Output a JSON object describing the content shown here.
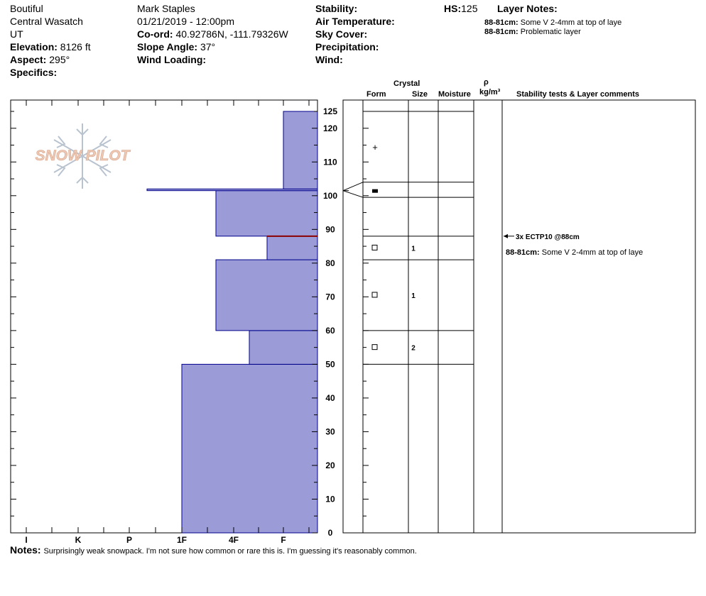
{
  "header": {
    "location": "Boutiful",
    "range": "Central Wasatch",
    "state": "UT",
    "elevation_label": "Elevation:",
    "elevation_value": "8126 ft",
    "aspect_label": "Aspect:",
    "aspect_value": "295°",
    "specifics_label": "Specifics:",
    "observer": "Mark Staples",
    "datetime": "01/21/2019 - 12:00pm",
    "coord_label": "Co-ord:",
    "coord_value": "40.92786N, -111.79326W",
    "slope_label": "Slope Angle:",
    "slope_value": "37°",
    "wind_loading_label": "Wind Loading:",
    "stability_label": "Stability:",
    "air_temp_label": "Air Temperature:",
    "sky_cover_label": "Sky Cover:",
    "precip_label": "Precipitation:",
    "wind_label": "Wind:",
    "hs_label": "HS:",
    "hs_value": "125",
    "layer_notes_label": "Layer Notes:",
    "layer_notes": [
      {
        "range": "88-81cm:",
        "text": "Some V 2-4mm at top of laye"
      },
      {
        "range": "88-81cm:",
        "text": "Problematic layer"
      }
    ]
  },
  "logo": {
    "text": "SNOW PILOT"
  },
  "columns": {
    "crystal": "Crystal",
    "form": "Form",
    "size": "Size",
    "moisture": "Moisture",
    "rho": "ρ",
    "density_unit": "kg/m³",
    "stability": "Stability tests & Layer comments"
  },
  "stability_test": {
    "text": "3x ECTP10 @88cm",
    "depth": 88
  },
  "layer_comment": {
    "range": "88-81cm:",
    "text": "Some V 2-4mm at top of laye"
  },
  "notes": {
    "label": "Notes:",
    "text": "Surprisingly weak snowpack. I'm not sure how common or rare this is. I'm guessing it's reasonably common."
  },
  "chart_data": {
    "type": "bar",
    "description_of_axes": "hardness profile vs snow height",
    "x_categories": [
      "I",
      "K",
      "P",
      "1F",
      "4F",
      "F"
    ],
    "y_ticks": [
      0,
      10,
      20,
      30,
      40,
      50,
      60,
      70,
      80,
      90,
      100,
      110,
      120,
      125
    ],
    "ylim": [
      0,
      125
    ],
    "hardness_layers": [
      {
        "bottom": 0,
        "top": 50,
        "hardness": "1F"
      },
      {
        "bottom": 50,
        "top": 60,
        "hardness": "4F+"
      },
      {
        "bottom": 60,
        "top": 81,
        "hardness": "4F"
      },
      {
        "bottom": 81,
        "top": 88,
        "hardness": "4F-F"
      },
      {
        "bottom": 88,
        "top": 101.5,
        "hardness": "4F"
      },
      {
        "bottom": 101.5,
        "top": 102,
        "hardness": "P-"
      },
      {
        "bottom": 102,
        "top": 125,
        "hardness": "F"
      }
    ],
    "weak_layer_height": 88,
    "grain_layers": [
      {
        "bottom": 99.5,
        "top": 104,
        "form": "melt-freeze crust",
        "size": ""
      },
      {
        "bottom": 81,
        "top": 88,
        "form": "faceted",
        "size": "1"
      },
      {
        "bottom": 60,
        "top": 81,
        "form": "faceted",
        "size": "1"
      },
      {
        "bottom": 50,
        "top": 60,
        "form": "faceted",
        "size": "2"
      }
    ],
    "grain_symbols": [
      {
        "height": 114.5,
        "symbol": "+"
      },
      {
        "height": 101.5,
        "symbol": "▬"
      },
      {
        "height": 84.5,
        "symbol": "□"
      },
      {
        "height": 70.5,
        "symbol": "□"
      },
      {
        "height": 55,
        "symbol": "□"
      }
    ],
    "grain_boundaries": [
      125,
      104,
      99.5,
      88,
      81,
      60,
      50
    ],
    "colors": {
      "fill": "#9b9bd8",
      "outline": "#00008b",
      "weak_layer": "#8b0000"
    }
  }
}
